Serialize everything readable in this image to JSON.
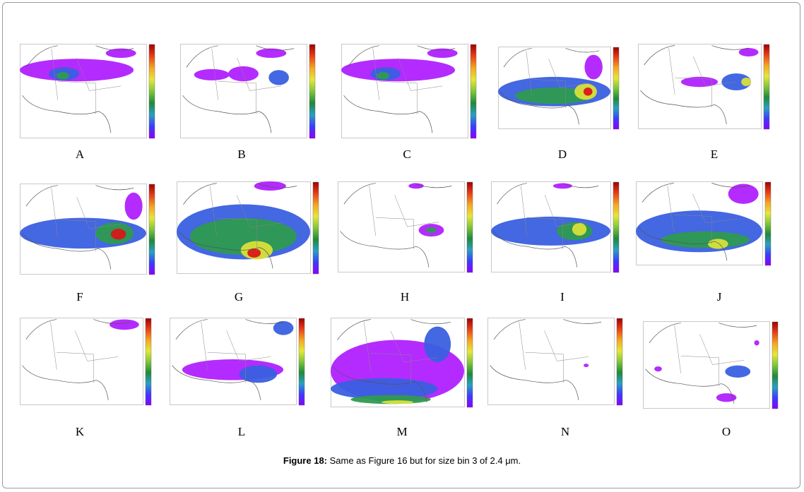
{
  "figure": {
    "caption_label": "Figure 18:",
    "caption_text": " Same as Figure 16 but for size bin 3 of 2.4 μm."
  },
  "panels": [
    {
      "label": "A",
      "colorbar": "standard"
    },
    {
      "label": "B",
      "colorbar": "standard"
    },
    {
      "label": "C",
      "colorbar": "standard"
    },
    {
      "label": "D",
      "colorbar": "standard"
    },
    {
      "label": "E",
      "colorbar": "standard"
    },
    {
      "label": "F",
      "colorbar": "standard"
    },
    {
      "label": "G",
      "colorbar": "standard"
    },
    {
      "label": "H",
      "colorbar": "standard"
    },
    {
      "label": "I",
      "colorbar": "standard"
    },
    {
      "label": "J",
      "colorbar": "standard"
    },
    {
      "label": "K",
      "colorbar": "standard"
    },
    {
      "label": "L",
      "colorbar": "standard"
    },
    {
      "label": "M",
      "colorbar": "standard"
    },
    {
      "label": "N",
      "colorbar": "standard"
    },
    {
      "label": "O",
      "colorbar": "standard"
    }
  ],
  "colors": {
    "colorbar_stops": [
      "#8a00ff",
      "#3b3bff",
      "#2aa0c0",
      "#1f8a3a",
      "#7fc63a",
      "#e6e63a",
      "#f5a623",
      "#e8401a",
      "#a00000"
    ],
    "map_outline": "#555555",
    "field_low": "#b020ff",
    "field_mid": "#3a5fe0",
    "field_green": "#2e9a50",
    "field_yellow": "#d8e03a",
    "field_red": "#d81818"
  }
}
